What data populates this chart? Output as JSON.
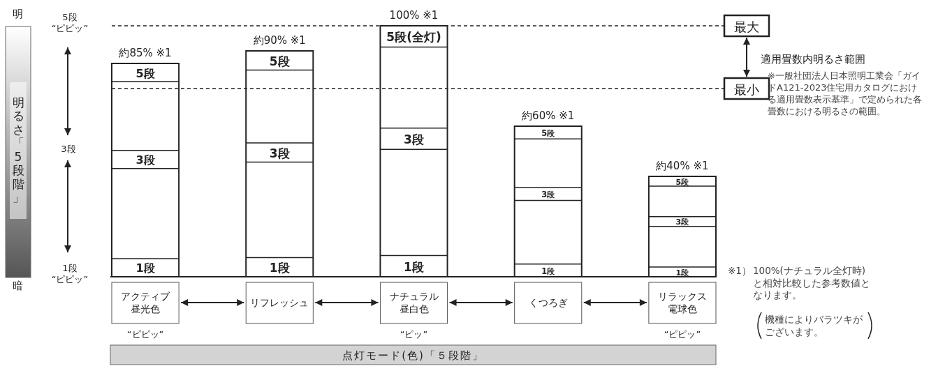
{
  "chart_data": {
    "type": "bar",
    "xlabel": "点灯モード(色)「５段階」",
    "categories": [
      "アクティブ昼光色",
      "リフレッシュ",
      "ナチュラル昼白色",
      "くつろぎ",
      "リラックス電球色"
    ],
    "series": [
      {
        "color": "#ffffff",
        "values": [
          85,
          90,
          100,
          60,
          40
        ],
        "value_labels": [
          "約85% ※1",
          "約90% ※1",
          "100% ※1",
          "約60% ※1",
          "約40% ※1"
        ]
      }
    ],
    "ref_lines": [
      {
        "axis": "y",
        "value": 100,
        "label": "最大",
        "line_style": "dashed"
      },
      {
        "axis": "y",
        "value": 75,
        "label": "最小",
        "line_style": "dashed"
      }
    ],
    "annotations": [
      "明",
      "暗",
      "明るさ「5段階」",
      "5段\n“ピピッ”",
      "3段",
      "1段\n“ピピッ”",
      "適用畳数内明るさ範囲",
      "※一般社団法人日本照明工業会「ガイドA121-2023住宅用カタログにおける適用畳数表示基準」で定められた各畳数における明るさの範囲。",
      "※1）",
      "100%(ナチュラル全灯時)と相対比較した参考数値となります。",
      "機種によりバラツキがございます。",
      "“ピピッ”",
      "“ピッ”",
      "“ピピッ”",
      "1段",
      "3段",
      "5段",
      "1段",
      "3段",
      "5段",
      "1段",
      "3段",
      "5段(全灯)",
      "1段",
      "3段",
      "5段",
      "1段",
      "3段",
      "5段"
    ]
  }
}
